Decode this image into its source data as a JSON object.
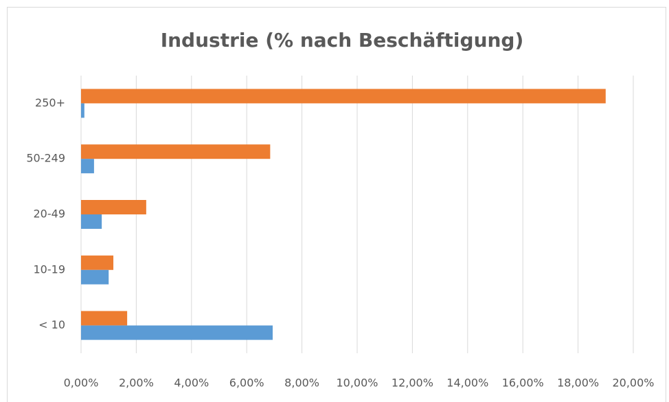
{
  "chart_data": {
    "type": "barh",
    "title": "Industrie (% nach Beschäftigung)",
    "categories": [
      "250+",
      "50-249",
      "20-49",
      "10-19",
      "< 10"
    ],
    "series": [
      {
        "color": "#ed7d31",
        "values": [
          19.0,
          6.85,
          2.36,
          1.17,
          1.67
        ]
      },
      {
        "color": "#5b9bd5",
        "values": [
          0.12,
          0.47,
          0.75,
          1.0,
          6.94
        ]
      }
    ],
    "xlim": [
      0,
      20
    ],
    "xticks": [
      {
        "value": 0,
        "label": "0,00%"
      },
      {
        "value": 2,
        "label": "2,00%"
      },
      {
        "value": 4,
        "label": "4,00%"
      },
      {
        "value": 6,
        "label": "6,00%"
      },
      {
        "value": 8,
        "label": "8,00%"
      },
      {
        "value": 10,
        "label": "10,00%"
      },
      {
        "value": 12,
        "label": "12,00%"
      },
      {
        "value": 14,
        "label": "14,00%"
      },
      {
        "value": 16,
        "label": "16,00%"
      },
      {
        "value": 18,
        "label": "18,00%"
      },
      {
        "value": 20,
        "label": "20,00%"
      }
    ],
    "grid": true
  }
}
